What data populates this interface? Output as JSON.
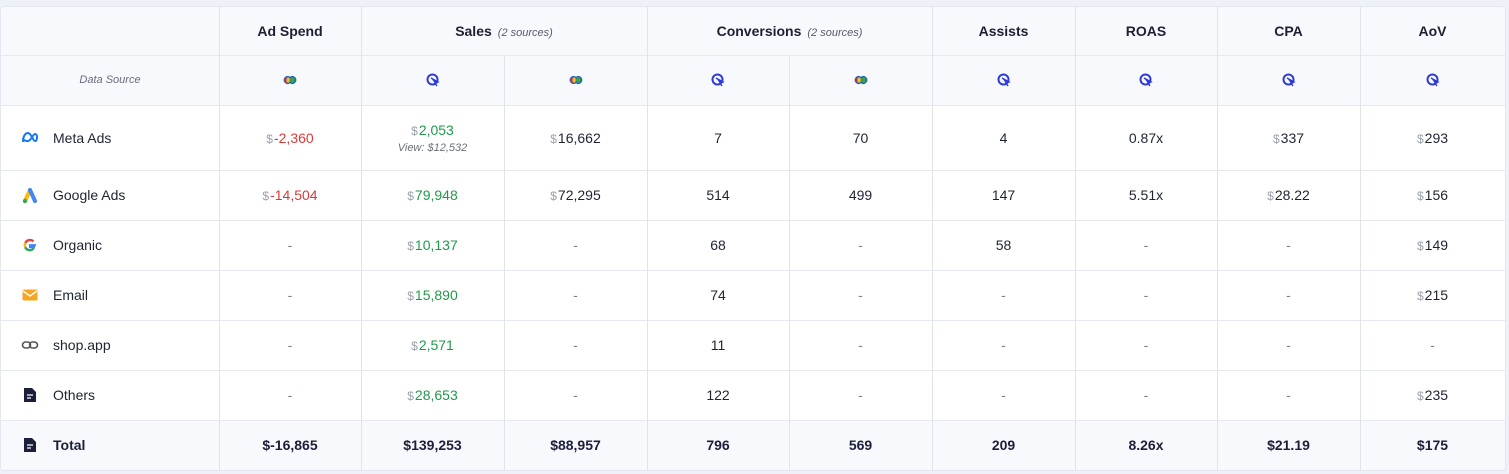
{
  "columns": {
    "ad_spend": "Ad Spend",
    "sales": "Sales",
    "sales_sub": "(2 sources)",
    "conversions": "Conversions",
    "conversions_sub": "(2 sources)",
    "assists": "Assists",
    "roas": "ROAS",
    "cpa": "CPA",
    "aov": "AoV"
  },
  "data_source_label": "Data Source",
  "currency_symbol": "$",
  "dash": "-",
  "rows": [
    {
      "name": "Meta Ads",
      "icon": "meta-icon",
      "ad_spend": "-2,360",
      "sales_a": "2,053",
      "sales_a_note": "View: $12,532",
      "sales_b": "16,662",
      "conv_a": "7",
      "conv_b": "70",
      "assists": "4",
      "roas": "0.87x",
      "cpa": "337",
      "aov": "293"
    },
    {
      "name": "Google Ads",
      "icon": "google-ads-icon",
      "ad_spend": "-14,504",
      "sales_a": "79,948",
      "sales_b": "72,295",
      "conv_a": "514",
      "conv_b": "499",
      "assists": "147",
      "roas": "5.51x",
      "cpa": "28.22",
      "aov": "156"
    },
    {
      "name": "Organic",
      "icon": "google-icon",
      "sales_a": "10,137",
      "conv_a": "68",
      "assists": "58",
      "aov": "149"
    },
    {
      "name": "Email",
      "icon": "email-icon",
      "sales_a": "15,890",
      "conv_a": "74",
      "aov": "215"
    },
    {
      "name": "shop.app",
      "icon": "link-icon",
      "sales_a": "2,571",
      "conv_a": "11"
    },
    {
      "name": "Others",
      "icon": "document-icon",
      "sales_a": "28,653",
      "conv_a": "122",
      "aov": "235"
    }
  ],
  "total": {
    "name": "Total",
    "icon": "document-icon",
    "ad_spend": "$-16,865",
    "sales_a": "$139,253",
    "sales_b": "$88,957",
    "conv_a": "796",
    "conv_b": "569",
    "assists": "209",
    "roas": "8.26x",
    "cpa": "$21.19",
    "aov": "$175"
  },
  "colors": {
    "negative": "#d63b3b",
    "positive": "#1f9a4a",
    "source_icon": "#2f3bd8"
  }
}
